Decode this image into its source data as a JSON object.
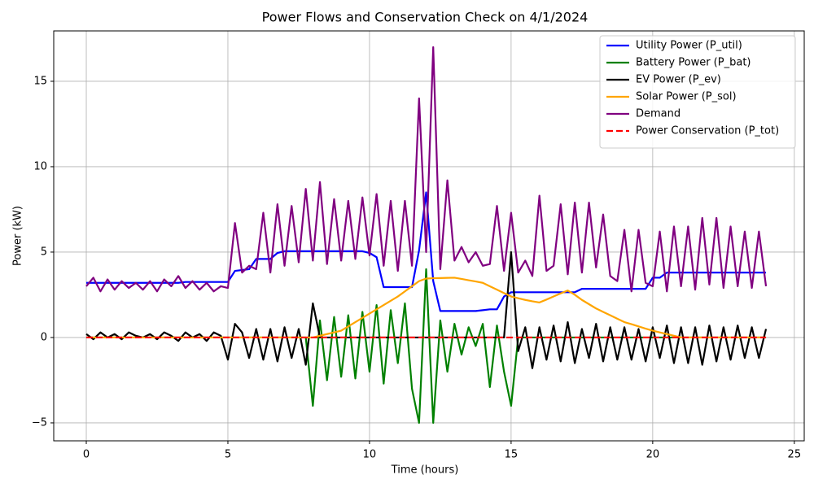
{
  "chart_data": {
    "type": "line",
    "title": "Power Flows and Conservation Check on 4/1/2024",
    "xlabel": "Time (hours)",
    "ylabel": "Power (kW)",
    "xlim": [
      -1.15,
      25.35
    ],
    "ylim": [
      -6.05,
      17.95
    ],
    "xticks": [
      0,
      5,
      10,
      15,
      20,
      25
    ],
    "yticks": [
      {
        "value": -5,
        "label": "−5"
      },
      0,
      5,
      10,
      15
    ],
    "grid": true,
    "legend": "upper right",
    "x": [
      0,
      0.25,
      0.5,
      0.75,
      1,
      1.25,
      1.5,
      1.75,
      2,
      2.25,
      2.5,
      2.75,
      3,
      3.25,
      3.5,
      3.75,
      4,
      4.25,
      4.5,
      4.75,
      5,
      5.25,
      5.5,
      5.75,
      6,
      6.25,
      6.5,
      6.75,
      7,
      7.25,
      7.5,
      7.75,
      8,
      8.25,
      8.5,
      8.75,
      9,
      9.25,
      9.5,
      9.75,
      10,
      10.25,
      10.5,
      10.75,
      11,
      11.25,
      11.5,
      11.75,
      12,
      12.25,
      12.5,
      12.75,
      13,
      13.25,
      13.5,
      13.75,
      14,
      14.25,
      14.5,
      14.75,
      15,
      15.25,
      15.5,
      15.75,
      16,
      16.25,
      16.5,
      16.75,
      17,
      17.25,
      17.5,
      17.75,
      18,
      18.25,
      18.5,
      18.75,
      19,
      19.25,
      19.5,
      19.75,
      20,
      20.25,
      20.5,
      20.75,
      21,
      21.25,
      21.5,
      21.75,
      22,
      22.25,
      22.5,
      22.75,
      23,
      23.25,
      23.5,
      23.75,
      24
    ],
    "series": [
      {
        "name": "Utility Power (P_util)",
        "color": "#0000ff",
        "values": [
          3.2,
          3.2,
          3.2,
          3.2,
          3.2,
          3.2,
          3.2,
          3.2,
          3.2,
          3.2,
          3.2,
          3.2,
          3.2,
          3.2,
          3.25,
          3.25,
          3.25,
          3.25,
          3.25,
          3.25,
          3.25,
          3.9,
          3.95,
          4.0,
          4.6,
          4.6,
          4.6,
          4.95,
          5.05,
          5.05,
          5.05,
          5.05,
          5.05,
          5.05,
          5.05,
          5.05,
          5.05,
          5.05,
          5.05,
          5.05,
          4.95,
          4.7,
          2.95,
          2.95,
          2.95,
          2.95,
          2.95,
          5.1,
          8.5,
          3.3,
          1.55,
          1.55,
          1.55,
          1.55,
          1.55,
          1.55,
          1.6,
          1.65,
          1.65,
          2.4,
          2.65,
          2.65,
          2.65,
          2.65,
          2.65,
          2.65,
          2.65,
          2.65,
          2.65,
          2.65,
          2.85,
          2.85,
          2.85,
          2.85,
          2.85,
          2.85,
          2.85,
          2.85,
          2.85,
          2.85,
          3.5,
          3.5,
          3.8,
          3.8,
          3.8,
          3.8,
          3.8,
          3.8,
          3.8,
          3.8,
          3.8,
          3.8,
          3.8,
          3.8,
          3.8,
          3.8,
          3.8
        ]
      },
      {
        "name": "Battery Power (P_bat)",
        "color": "#008000",
        "values": [
          0,
          0,
          0,
          0,
          0,
          0,
          0,
          0,
          0,
          0,
          0,
          0,
          0,
          0,
          0,
          0,
          0,
          0,
          0,
          0,
          0,
          0,
          0,
          0,
          0,
          0,
          0,
          0,
          0,
          0,
          0,
          0,
          -4.0,
          1.0,
          -2.5,
          1.2,
          -2.3,
          1.3,
          -2.4,
          1.5,
          -2.0,
          1.9,
          -2.7,
          1.6,
          -1.5,
          2.0,
          -3.0,
          -5.0,
          4.0,
          -5.0,
          1.0,
          -2.0,
          0.8,
          -1.0,
          0.6,
          -0.5,
          0.8,
          -2.9,
          0.7,
          -2.0,
          -4.0,
          0,
          0,
          0,
          0,
          0,
          0,
          0,
          0,
          0,
          0,
          0,
          0,
          0,
          0,
          0,
          0,
          0,
          0,
          0,
          0,
          0,
          0,
          0,
          0,
          0,
          0,
          0,
          0,
          0,
          0,
          0,
          0,
          0,
          0,
          0,
          0
        ]
      },
      {
        "name": "EV Power (P_ev)",
        "color": "#000000",
        "values": [
          0.2,
          -0.1,
          0.3,
          0.0,
          0.2,
          -0.1,
          0.3,
          0.1,
          0.0,
          0.2,
          -0.1,
          0.3,
          0.1,
          -0.2,
          0.3,
          0.0,
          0.2,
          -0.2,
          0.3,
          0.1,
          -1.3,
          0.8,
          0.3,
          -1.2,
          0.5,
          -1.3,
          0.5,
          -1.4,
          0.6,
          -1.2,
          0.5,
          -1.6,
          2.0,
          0,
          0,
          0,
          0,
          0,
          0,
          0,
          0,
          0,
          0,
          0,
          0,
          0,
          0,
          0,
          0,
          0,
          0,
          0,
          0,
          0,
          0,
          0,
          0,
          0,
          0,
          0,
          5.0,
          -0.8,
          0.6,
          -1.8,
          0.6,
          -1.3,
          0.7,
          -1.4,
          0.9,
          -1.5,
          0.5,
          -1.2,
          0.8,
          -1.4,
          0.6,
          -1.3,
          0.6,
          -1.3,
          0.5,
          -1.4,
          0.6,
          -1.2,
          0.7,
          -1.5,
          0.6,
          -1.5,
          0.6,
          -1.6,
          0.7,
          -1.4,
          0.6,
          -1.3,
          0.7,
          -1.2,
          0.6,
          -1.2,
          0.5
        ]
      },
      {
        "name": "Solar Power (P_sol)",
        "color": "#ffa500",
        "values": [
          0,
          0,
          0,
          0,
          0,
          0,
          0,
          0,
          0,
          0,
          0,
          0,
          0,
          0,
          0,
          0,
          0,
          0,
          0,
          0,
          0,
          0,
          0,
          0,
          0,
          0,
          0,
          0,
          0,
          0,
          0,
          0,
          0,
          0.1,
          0.2,
          0.3,
          0.4,
          0.65,
          0.9,
          1.15,
          1.4,
          1.65,
          1.9,
          2.15,
          2.4,
          2.7,
          3.0,
          3.3,
          3.45,
          3.47,
          3.48,
          3.49,
          3.5,
          3.43,
          3.35,
          3.28,
          3.2,
          3.0,
          2.8,
          2.6,
          2.4,
          2.3,
          2.2,
          2.12,
          2.05,
          2.22,
          2.4,
          2.58,
          2.75,
          2.5,
          2.2,
          1.95,
          1.7,
          1.5,
          1.3,
          1.1,
          0.9,
          0.78,
          0.65,
          0.52,
          0.4,
          0.3,
          0.2,
          0.1,
          0,
          0,
          0,
          0,
          0,
          0,
          0,
          0,
          0,
          0,
          0,
          0,
          0
        ]
      },
      {
        "name": "Demand",
        "color": "#800080",
        "values": [
          3.0,
          3.5,
          2.7,
          3.4,
          2.8,
          3.3,
          2.9,
          3.2,
          2.8,
          3.3,
          2.7,
          3.4,
          3.0,
          3.6,
          2.9,
          3.3,
          2.8,
          3.2,
          2.7,
          3.0,
          2.9,
          6.7,
          3.8,
          4.2,
          4.0,
          7.3,
          3.8,
          7.8,
          4.2,
          7.7,
          4.4,
          8.7,
          4.5,
          9.1,
          4.3,
          8.1,
          4.5,
          8.0,
          4.6,
          8.2,
          4.8,
          8.4,
          4.2,
          8.0,
          3.9,
          8.0,
          4.2,
          14.0,
          5.0,
          17.0,
          4.0,
          9.2,
          4.5,
          5.3,
          4.4,
          5.0,
          4.2,
          4.3,
          7.7,
          3.9,
          7.3,
          3.8,
          4.5,
          3.6,
          8.3,
          3.9,
          4.2,
          7.8,
          3.7,
          7.9,
          3.8,
          7.9,
          4.1,
          7.2,
          3.6,
          3.3,
          6.3,
          2.7,
          6.3,
          3.2,
          3.0,
          6.2,
          2.7,
          6.5,
          3.0,
          6.5,
          2.8,
          7.0,
          3.1,
          7.0,
          2.9,
          6.5,
          3.0,
          6.2,
          2.9,
          6.2,
          3.0
        ]
      },
      {
        "name": "Power Conservation (P_tot)",
        "color": "#ff0000",
        "linestyle": "dashed",
        "values": [
          0,
          0,
          0,
          0,
          0,
          0,
          0,
          0,
          0,
          0,
          0,
          0,
          0,
          0,
          0,
          0,
          0,
          0,
          0,
          0,
          0,
          0,
          0,
          0,
          0,
          0,
          0,
          0,
          0,
          0,
          0,
          0,
          0,
          0,
          0,
          0,
          0,
          0,
          0,
          0,
          0,
          0,
          0,
          0,
          0,
          0,
          0,
          0,
          0,
          0,
          0,
          0,
          0,
          0,
          0,
          0,
          0,
          0,
          0,
          0,
          0,
          0,
          0,
          0,
          0,
          0,
          0,
          0,
          0,
          0,
          0,
          0,
          0,
          0,
          0,
          0,
          0,
          0,
          0,
          0,
          0,
          0,
          0,
          0,
          0,
          0,
          0,
          0,
          0,
          0,
          0,
          0,
          0,
          0,
          0,
          0,
          0
        ]
      }
    ]
  }
}
